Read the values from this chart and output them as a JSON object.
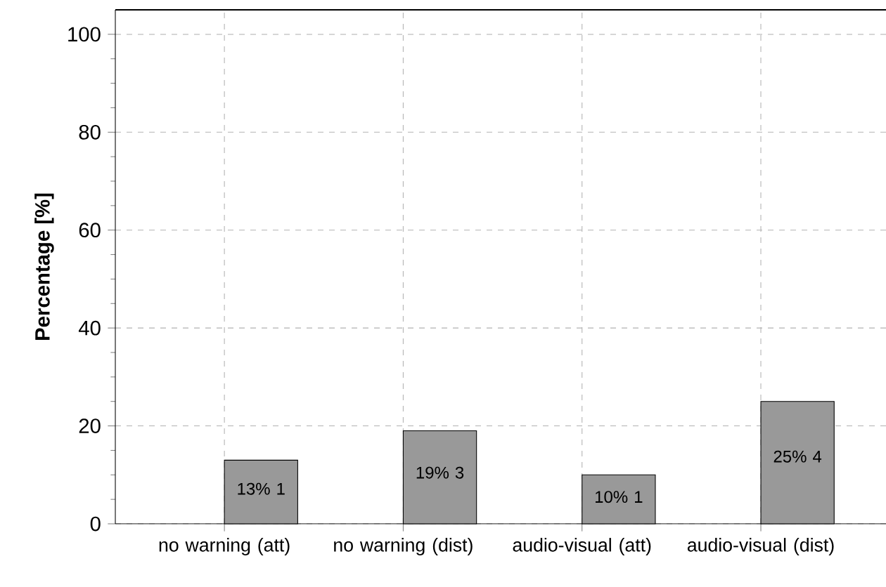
{
  "chart_data": {
    "type": "bar",
    "ylabel": "Percentage [%]",
    "categories": [
      "no warning (att)",
      "no warning (dist)",
      "audio-visual (att)",
      "audio-visual (dist)"
    ],
    "values": [
      13,
      19,
      10,
      25
    ],
    "value_labels": [
      "13% 1",
      "19% 3",
      "10% 1",
      "25% 4"
    ],
    "color": "#999999",
    "ylim": [
      0,
      105
    ],
    "yticks": [
      0,
      20,
      40,
      60,
      80,
      100
    ],
    "grid": true
  }
}
